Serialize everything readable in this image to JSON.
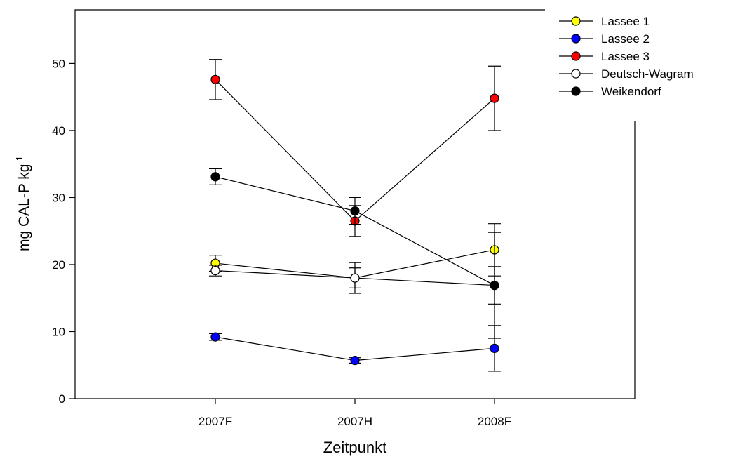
{
  "chart_data": {
    "type": "line",
    "title": "",
    "xlabel": "Zeitpunkt",
    "ylabel_main": "mg CAL-P kg",
    "ylabel_sup": "-1",
    "categories": [
      "2007F",
      "2007H",
      "2008F"
    ],
    "ylim": [
      0,
      58
    ],
    "yticks": [
      0,
      10,
      20,
      30,
      40,
      50
    ],
    "grid": false,
    "legend_position": "top-right",
    "series": [
      {
        "name": "Lassee 1",
        "color": "#ffff00",
        "values": [
          20.2,
          18.0,
          22.2
        ],
        "errors": [
          1.2,
          2.3,
          3.9
        ]
      },
      {
        "name": "Lassee 2",
        "color": "#0000ff",
        "values": [
          9.2,
          5.7,
          7.5
        ],
        "errors": [
          0.5,
          0.4,
          3.4
        ]
      },
      {
        "name": "Lassee 3",
        "color": "#ff0000",
        "values": [
          47.6,
          26.5,
          44.8
        ],
        "errors": [
          3.0,
          2.3,
          4.8
        ]
      },
      {
        "name": "Deutsch-Wagram",
        "color": "#ffffff",
        "values": [
          19.1,
          18.0,
          16.9
        ],
        "errors": [
          0.8,
          1.5,
          7.9
        ]
      },
      {
        "name": "Weikendorf",
        "color": "#000000",
        "values": [
          33.1,
          28.0,
          16.9
        ],
        "errors": [
          1.2,
          2.0,
          2.8
        ]
      }
    ]
  }
}
